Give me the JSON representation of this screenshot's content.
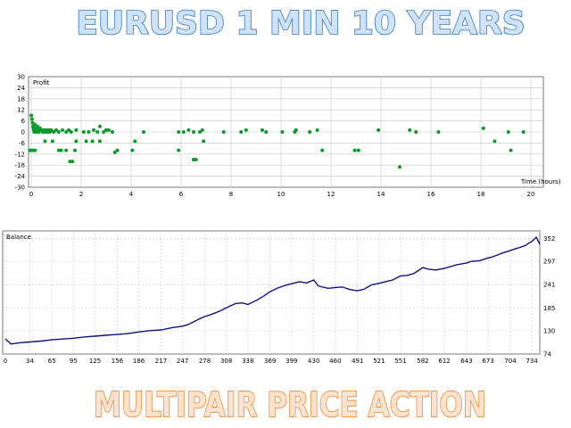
{
  "banner": {
    "title": "EURUSD 1 MIN 10 YEARS",
    "subtitle": "MULTIPAIR PRICE ACTION"
  },
  "colors": {
    "title_fill": "#cfe2f7",
    "title_stroke": "#2f79c6",
    "subtitle_fill": "#fbe3cf",
    "subtitle_stroke": "#f07a12",
    "scatter_point": "#0a9a2a",
    "balance_line": "#10108c",
    "grid": "#c8c8c8"
  },
  "chart_data": [
    {
      "type": "scatter",
      "title": "Profit",
      "xlabel": "Time (hours)",
      "xlim": [
        0,
        20.5
      ],
      "ylim": [
        -30,
        30
      ],
      "x_ticks": [
        "0",
        "2",
        "4",
        "6",
        "8",
        "10",
        "12",
        "14",
        "16",
        "18",
        "20"
      ],
      "y_ticks": [
        "30",
        "24",
        "18",
        "12",
        "6",
        "0",
        "-6",
        "-12",
        "-18",
        "-24",
        "-30"
      ],
      "grid": true,
      "points": [
        [
          0.0,
          9
        ],
        [
          0.03,
          7
        ],
        [
          0.05,
          5
        ],
        [
          0.07,
          3
        ],
        [
          0.09,
          2
        ],
        [
          0.1,
          1
        ],
        [
          0.12,
          0
        ],
        [
          0.15,
          4
        ],
        [
          0.18,
          2
        ],
        [
          0.2,
          1
        ],
        [
          0.22,
          0
        ],
        [
          0.25,
          3
        ],
        [
          0.28,
          1
        ],
        [
          0.3,
          0
        ],
        [
          0.35,
          2
        ],
        [
          0.4,
          1
        ],
        [
          0.45,
          0
        ],
        [
          0.5,
          1
        ],
        [
          0.55,
          0
        ],
        [
          0.6,
          1
        ],
        [
          0.65,
          0
        ],
        [
          0.7,
          1
        ],
        [
          0.75,
          0
        ],
        [
          0.8,
          1
        ],
        [
          0.9,
          0
        ],
        [
          1.0,
          1
        ],
        [
          1.1,
          0
        ],
        [
          1.25,
          1
        ],
        [
          1.4,
          0
        ],
        [
          1.5,
          1
        ],
        [
          1.6,
          0
        ],
        [
          1.8,
          1
        ],
        [
          2.1,
          0
        ],
        [
          2.3,
          0
        ],
        [
          2.5,
          1
        ],
        [
          2.65,
          0
        ],
        [
          2.75,
          3
        ],
        [
          2.9,
          0
        ],
        [
          3.0,
          1
        ],
        [
          3.1,
          1
        ],
        [
          3.25,
          0
        ],
        [
          4.5,
          0
        ],
        [
          5.9,
          0
        ],
        [
          6.1,
          0
        ],
        [
          6.3,
          1
        ],
        [
          6.5,
          0
        ],
        [
          6.75,
          0
        ],
        [
          6.85,
          1
        ],
        [
          7.7,
          0
        ],
        [
          8.4,
          0
        ],
        [
          8.6,
          1
        ],
        [
          9.25,
          1
        ],
        [
          9.4,
          0
        ],
        [
          10.05,
          0
        ],
        [
          10.55,
          0
        ],
        [
          10.6,
          1
        ],
        [
          11.15,
          0
        ],
        [
          11.45,
          1
        ],
        [
          13.9,
          1
        ],
        [
          15.15,
          1
        ],
        [
          15.4,
          0
        ],
        [
          16.3,
          0
        ],
        [
          18.1,
          2
        ],
        [
          19.1,
          0
        ],
        [
          19.7,
          0
        ],
        [
          -0.05,
          -10
        ],
        [
          0.05,
          -10
        ],
        [
          0.15,
          -10
        ],
        [
          0.55,
          -5
        ],
        [
          0.85,
          -5
        ],
        [
          1.1,
          -10
        ],
        [
          1.2,
          -10
        ],
        [
          1.4,
          -10
        ],
        [
          1.55,
          -16
        ],
        [
          1.65,
          -16
        ],
        [
          1.75,
          -10
        ],
        [
          1.8,
          -5
        ],
        [
          2.2,
          -5
        ],
        [
          2.45,
          -5
        ],
        [
          2.75,
          -5
        ],
        [
          3.35,
          -11
        ],
        [
          3.45,
          -10
        ],
        [
          4.05,
          -10
        ],
        [
          4.15,
          -5
        ],
        [
          5.9,
          -10
        ],
        [
          6.5,
          -15
        ],
        [
          6.6,
          -15
        ],
        [
          6.9,
          -5
        ],
        [
          11.65,
          -10
        ],
        [
          12.95,
          -10
        ],
        [
          13.1,
          -10
        ],
        [
          14.75,
          -19
        ],
        [
          18.55,
          -5
        ],
        [
          19.2,
          -10
        ]
      ]
    },
    {
      "type": "line",
      "title": "Balance",
      "xlim": [
        0,
        745
      ],
      "ylim": [
        74,
        370
      ],
      "x_ticks": [
        "0",
        "34",
        "65",
        "95",
        "125",
        "156",
        "186",
        "217",
        "247",
        "278",
        "308",
        "338",
        "369",
        "399",
        "430",
        "460",
        "491",
        "521",
        "551",
        "582",
        "612",
        "643",
        "673",
        "704",
        "734"
      ],
      "y_ticks": [
        "352",
        "297",
        "241",
        "185",
        "130",
        "74"
      ],
      "grid": true,
      "series": [
        {
          "x": [
            0,
            8,
            20,
            34,
            50,
            65,
            80,
            95,
            110,
            125,
            140,
            156,
            170,
            186,
            200,
            217,
            232,
            247,
            255,
            262,
            270,
            278,
            290,
            300,
            308,
            320,
            330,
            338,
            350,
            360,
            369,
            380,
            390,
            399,
            410,
            420,
            430,
            436,
            440,
            450,
            460,
            470,
            480,
            491,
            500,
            510,
            521,
            530,
            540,
            551,
            560,
            570,
            582,
            590,
            600,
            612,
            620,
            630,
            643,
            650,
            660,
            673,
            680,
            690,
            704,
            715,
            725,
            730,
            734,
            740,
            745
          ],
          "y": [
            110,
            98,
            101,
            103,
            105,
            108,
            110,
            112,
            115,
            117,
            119,
            121,
            123,
            127,
            130,
            132,
            137,
            141,
            145,
            151,
            158,
            164,
            171,
            178,
            185,
            195,
            197,
            193,
            203,
            213,
            224,
            233,
            239,
            243,
            248,
            245,
            252,
            238,
            236,
            232,
            234,
            235,
            229,
            226,
            230,
            240,
            244,
            248,
            252,
            262,
            263,
            268,
            282,
            278,
            276,
            280,
            284,
            289,
            293,
            297,
            298,
            305,
            308,
            315,
            323,
            329,
            335,
            341,
            345,
            355,
            338
          ]
        }
      ]
    }
  ]
}
